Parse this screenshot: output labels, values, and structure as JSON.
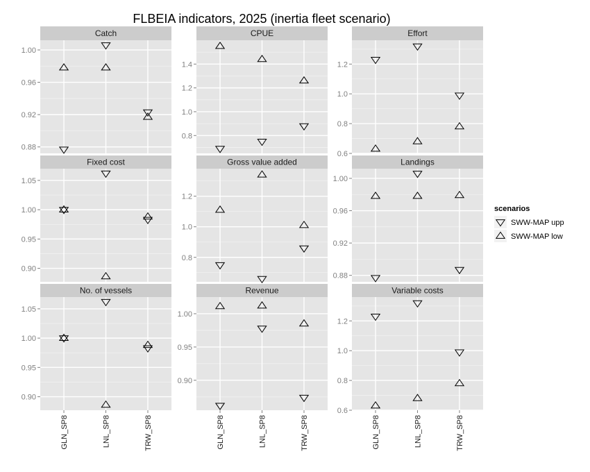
{
  "chart_data": {
    "type": "scatter",
    "title": "FLBEIA indicators, 2025 (inertia fleet scenario)",
    "categories": [
      "GLN_SP8",
      "LNL_SP8",
      "TRW_SP8"
    ],
    "legend": {
      "title": "scenarios",
      "placement": "right",
      "entries": [
        {
          "label": "SWW-MAP upp",
          "shape": "triangle-down"
        },
        {
          "label": "SWW-MAP low",
          "shape": "triangle-up"
        }
      ]
    },
    "panels": [
      {
        "name": "Catch",
        "ylim": [
          0.872,
          1.012
        ],
        "yticks": [
          0.88,
          0.92,
          0.96,
          1.0
        ],
        "ytick_labels": [
          "0.88",
          "0.92",
          "0.96",
          "1.00"
        ],
        "series": [
          {
            "name": "SWW-MAP upp",
            "values": [
              0.877,
              1.006,
              0.923
            ]
          },
          {
            "name": "SWW-MAP low",
            "values": [
              0.978,
              0.978,
              0.917
            ]
          }
        ]
      },
      {
        "name": "CPUE",
        "ylim": [
          0.65,
          1.6
        ],
        "yticks": [
          0.8,
          1.0,
          1.2,
          1.4
        ],
        "ytick_labels": [
          "0.8",
          "1.0",
          "1.2",
          "1.4"
        ],
        "series": [
          {
            "name": "SWW-MAP upp",
            "values": [
              0.69,
              0.75,
              0.88
            ]
          },
          {
            "name": "SWW-MAP low",
            "values": [
              1.55,
              1.44,
              1.26
            ]
          }
        ]
      },
      {
        "name": "Effort",
        "ylim": [
          0.6,
          1.36
        ],
        "yticks": [
          0.6,
          0.8,
          1.0,
          1.2
        ],
        "ytick_labels": [
          "0.6",
          "0.8",
          "1.0",
          "1.2"
        ],
        "series": [
          {
            "name": "SWW-MAP upp",
            "values": [
              1.23,
              1.32,
              0.99
            ]
          },
          {
            "name": "SWW-MAP low",
            "values": [
              0.63,
              0.68,
              0.78
            ]
          }
        ]
      },
      {
        "name": "Fixed cost",
        "ylim": [
          0.877,
          1.07
        ],
        "yticks": [
          0.9,
          0.95,
          1.0,
          1.05
        ],
        "ytick_labels": [
          "0.90",
          "0.95",
          "1.00",
          "1.05"
        ],
        "series": [
          {
            "name": "SWW-MAP upp",
            "values": [
              1.0,
              1.062,
              0.983
            ]
          },
          {
            "name": "SWW-MAP low",
            "values": [
              1.0,
              0.886,
              0.988
            ]
          }
        ]
      },
      {
        "name": "Gross value added",
        "ylim": [
          0.64,
          1.38
        ],
        "yticks": [
          0.8,
          1.0,
          1.2
        ],
        "ytick_labels": [
          "0.8",
          "1.0",
          "1.2"
        ],
        "series": [
          {
            "name": "SWW-MAP upp",
            "values": [
              0.75,
              0.66,
              0.86
            ]
          },
          {
            "name": "SWW-MAP low",
            "values": [
              1.11,
              1.34,
              1.01
            ]
          }
        ]
      },
      {
        "name": "Landings",
        "ylim": [
          0.872,
          1.012
        ],
        "yticks": [
          0.88,
          0.92,
          0.96,
          1.0
        ],
        "ytick_labels": [
          "0.88",
          "0.92",
          "0.96",
          "1.00"
        ],
        "series": [
          {
            "name": "SWW-MAP upp",
            "values": [
              0.877,
              1.006,
              0.887
            ]
          },
          {
            "name": "SWW-MAP low",
            "values": [
              0.978,
              0.978,
              0.979
            ]
          }
        ]
      },
      {
        "name": "No. of vessels",
        "ylim": [
          0.877,
          1.07
        ],
        "yticks": [
          0.9,
          0.95,
          1.0,
          1.05
        ],
        "ytick_labels": [
          "0.90",
          "0.95",
          "1.00",
          "1.05"
        ],
        "series": [
          {
            "name": "SWW-MAP upp",
            "values": [
              1.0,
              1.062,
              0.983
            ]
          },
          {
            "name": "SWW-MAP low",
            "values": [
              1.0,
              0.886,
              0.988
            ]
          }
        ]
      },
      {
        "name": "Revenue",
        "ylim": [
          0.855,
          1.025
        ],
        "yticks": [
          0.9,
          0.95,
          1.0
        ],
        "ytick_labels": [
          "0.90",
          "0.95",
          "1.00"
        ],
        "series": [
          {
            "name": "SWW-MAP upp",
            "values": [
              0.862,
              0.978,
              0.874
            ]
          },
          {
            "name": "SWW-MAP low",
            "values": [
              1.011,
              1.012,
              0.985
            ]
          }
        ]
      },
      {
        "name": "Variable costs",
        "ylim": [
          0.6,
          1.36
        ],
        "yticks": [
          0.6,
          0.8,
          1.0,
          1.2
        ],
        "ytick_labels": [
          "0.6",
          "0.8",
          "1.0",
          "1.2"
        ],
        "series": [
          {
            "name": "SWW-MAP upp",
            "values": [
              1.23,
              1.32,
              0.99
            ]
          },
          {
            "name": "SWW-MAP low",
            "values": [
              0.63,
              0.68,
              0.78
            ]
          }
        ]
      }
    ],
    "grid": true,
    "colors": {
      "panel_bg": "#e5e5e5",
      "strip_bg": "#cccccc",
      "grid_major": "#ffffff",
      "grid_minor": "#f2f2f2",
      "marker": "#000000"
    }
  }
}
